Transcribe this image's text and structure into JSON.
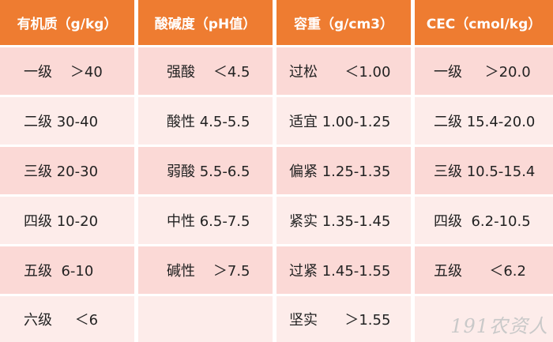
{
  "headers": [
    "有机质（g/kg）",
    "酸碱度（pH值）",
    "容重（g/cm3）",
    "CEC（cmol/kg）"
  ],
  "rows": [
    [
      "一级    ＞40",
      "强酸    ＜4.5",
      "过松      ＜1.00",
      "一级     ＞20.0"
    ],
    [
      "二级 30-40",
      "酸性 4.5-5.5",
      "适宜 1.00-1.25",
      "二级 15.4-20.0"
    ],
    [
      "三级 20-30",
      "弱酸 5.5-6.5",
      "偏紧 1.25-1.35",
      "三级 10.5-15.4"
    ],
    [
      "四级 10-20",
      "中性 6.5-7.5",
      "紧实 1.35-1.45",
      "四级  6.2-10.5"
    ],
    [
      "五级  6-10",
      "碱性    ＞7.5",
      "过紧 1.45-1.55",
      "五级      ＜6.2"
    ],
    [
      "六级     ＜6",
      "",
      "坚实      ＞1.55",
      ""
    ]
  ],
  "watermark": "191农资人",
  "colors": {
    "header": "#ee7c31",
    "row_dark": "#fbd9d6",
    "row_light": "#fdecea"
  }
}
